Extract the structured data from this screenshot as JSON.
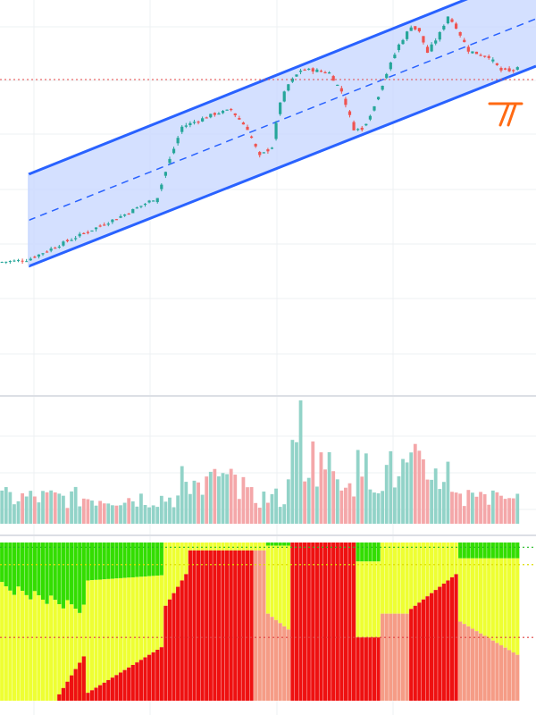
{
  "colors": {
    "up": "#26a69a",
    "down": "#ef5350",
    "channel_line": "#2962ff",
    "channel_fill": "#c9d8ff",
    "grid": "#eef0f3",
    "price_line": "#e84a4a",
    "vol_up": "#92d3c8",
    "vol_down": "#f4a7a9",
    "osc_green": "#33dd00",
    "osc_yellow": "#eeff33",
    "osc_red": "#ee1111",
    "osc_salmon": "#f59c86",
    "osc_ref": "#22bb22",
    "osc_ref_mid": "#dddd00",
    "osc_ref_low": "#e04040",
    "marker": "#ff6a13"
  },
  "chart_data": [
    {
      "type": "candlestick",
      "panel": "price",
      "x_range": [
        0,
        98
      ],
      "y_range": [
        0,
        100
      ],
      "scale": "linear",
      "grid": true,
      "legend": "none",
      "channel": {
        "lower_start": [
          5,
          16.5
        ],
        "lower_end": [
          98,
          75.0
        ],
        "width": 34
      },
      "price_line": 80.5,
      "marker_at": [
        96,
        70
      ],
      "candles": []
    },
    {
      "type": "bar",
      "panel": "volume",
      "y_range": [
        0,
        100
      ],
      "values": [],
      "directions": []
    },
    {
      "type": "bar",
      "panel": "oscillator",
      "y_range": [
        0,
        100
      ],
      "reference_lines": [
        97,
        86,
        40
      ],
      "series": [
        {
          "name": "",
          "color_key": "osc_green",
          "values": []
        }
      ]
    }
  ]
}
